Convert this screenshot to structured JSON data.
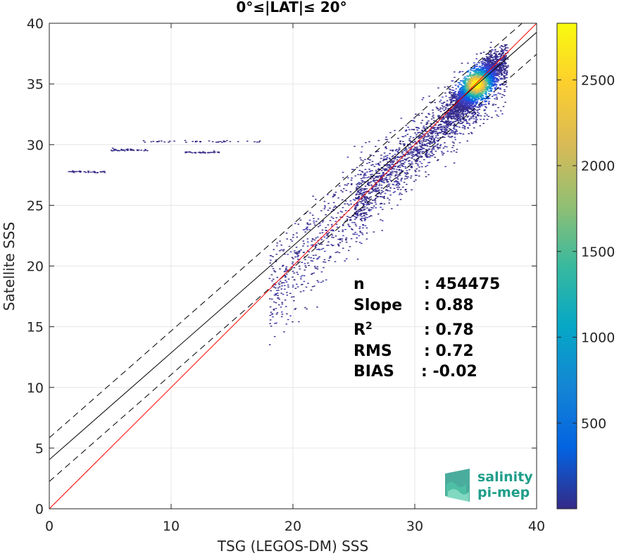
{
  "chart_data": {
    "type": "scatter",
    "title": "0°≤|LAT|≤ 20°",
    "xlabel": "TSG (LEGOS-DM) SSS",
    "ylabel": "Satellite SSS",
    "xlim": [
      0,
      40
    ],
    "ylim": [
      0,
      40
    ],
    "xticks": [
      0,
      10,
      20,
      30,
      40
    ],
    "yticks": [
      0,
      5,
      10,
      15,
      20,
      25,
      30,
      35,
      40
    ],
    "grid": true,
    "density_core": {
      "x": 35,
      "y": 35
    },
    "lines": {
      "identity": {
        "slope": 1,
        "intercept": 0,
        "color": "#ff0000"
      },
      "fit": {
        "slope": 0.88,
        "intercept": 4.05,
        "color": "#000000"
      },
      "fit_upper": {
        "slope": 0.88,
        "intercept": 5.85
      },
      "fit_lower": {
        "slope": 0.88,
        "intercept": 2.25
      }
    },
    "colorbar": {
      "ticks": [
        500,
        1000,
        1500,
        2000,
        2500
      ],
      "min": 0,
      "max": 2830
    },
    "stats": [
      {
        "key": "n",
        "value": ": 454475"
      },
      {
        "key": "Slope",
        "value": ": 0.88"
      },
      {
        "key": "R",
        "sup": "2",
        "value": ": 0.78"
      },
      {
        "key": "RMS",
        "value": ": 0.72"
      },
      {
        "key": "BIAS",
        "value": ": -0.02"
      }
    ]
  },
  "logo": {
    "line1": "salinity",
    "line2": "pi-mep"
  }
}
